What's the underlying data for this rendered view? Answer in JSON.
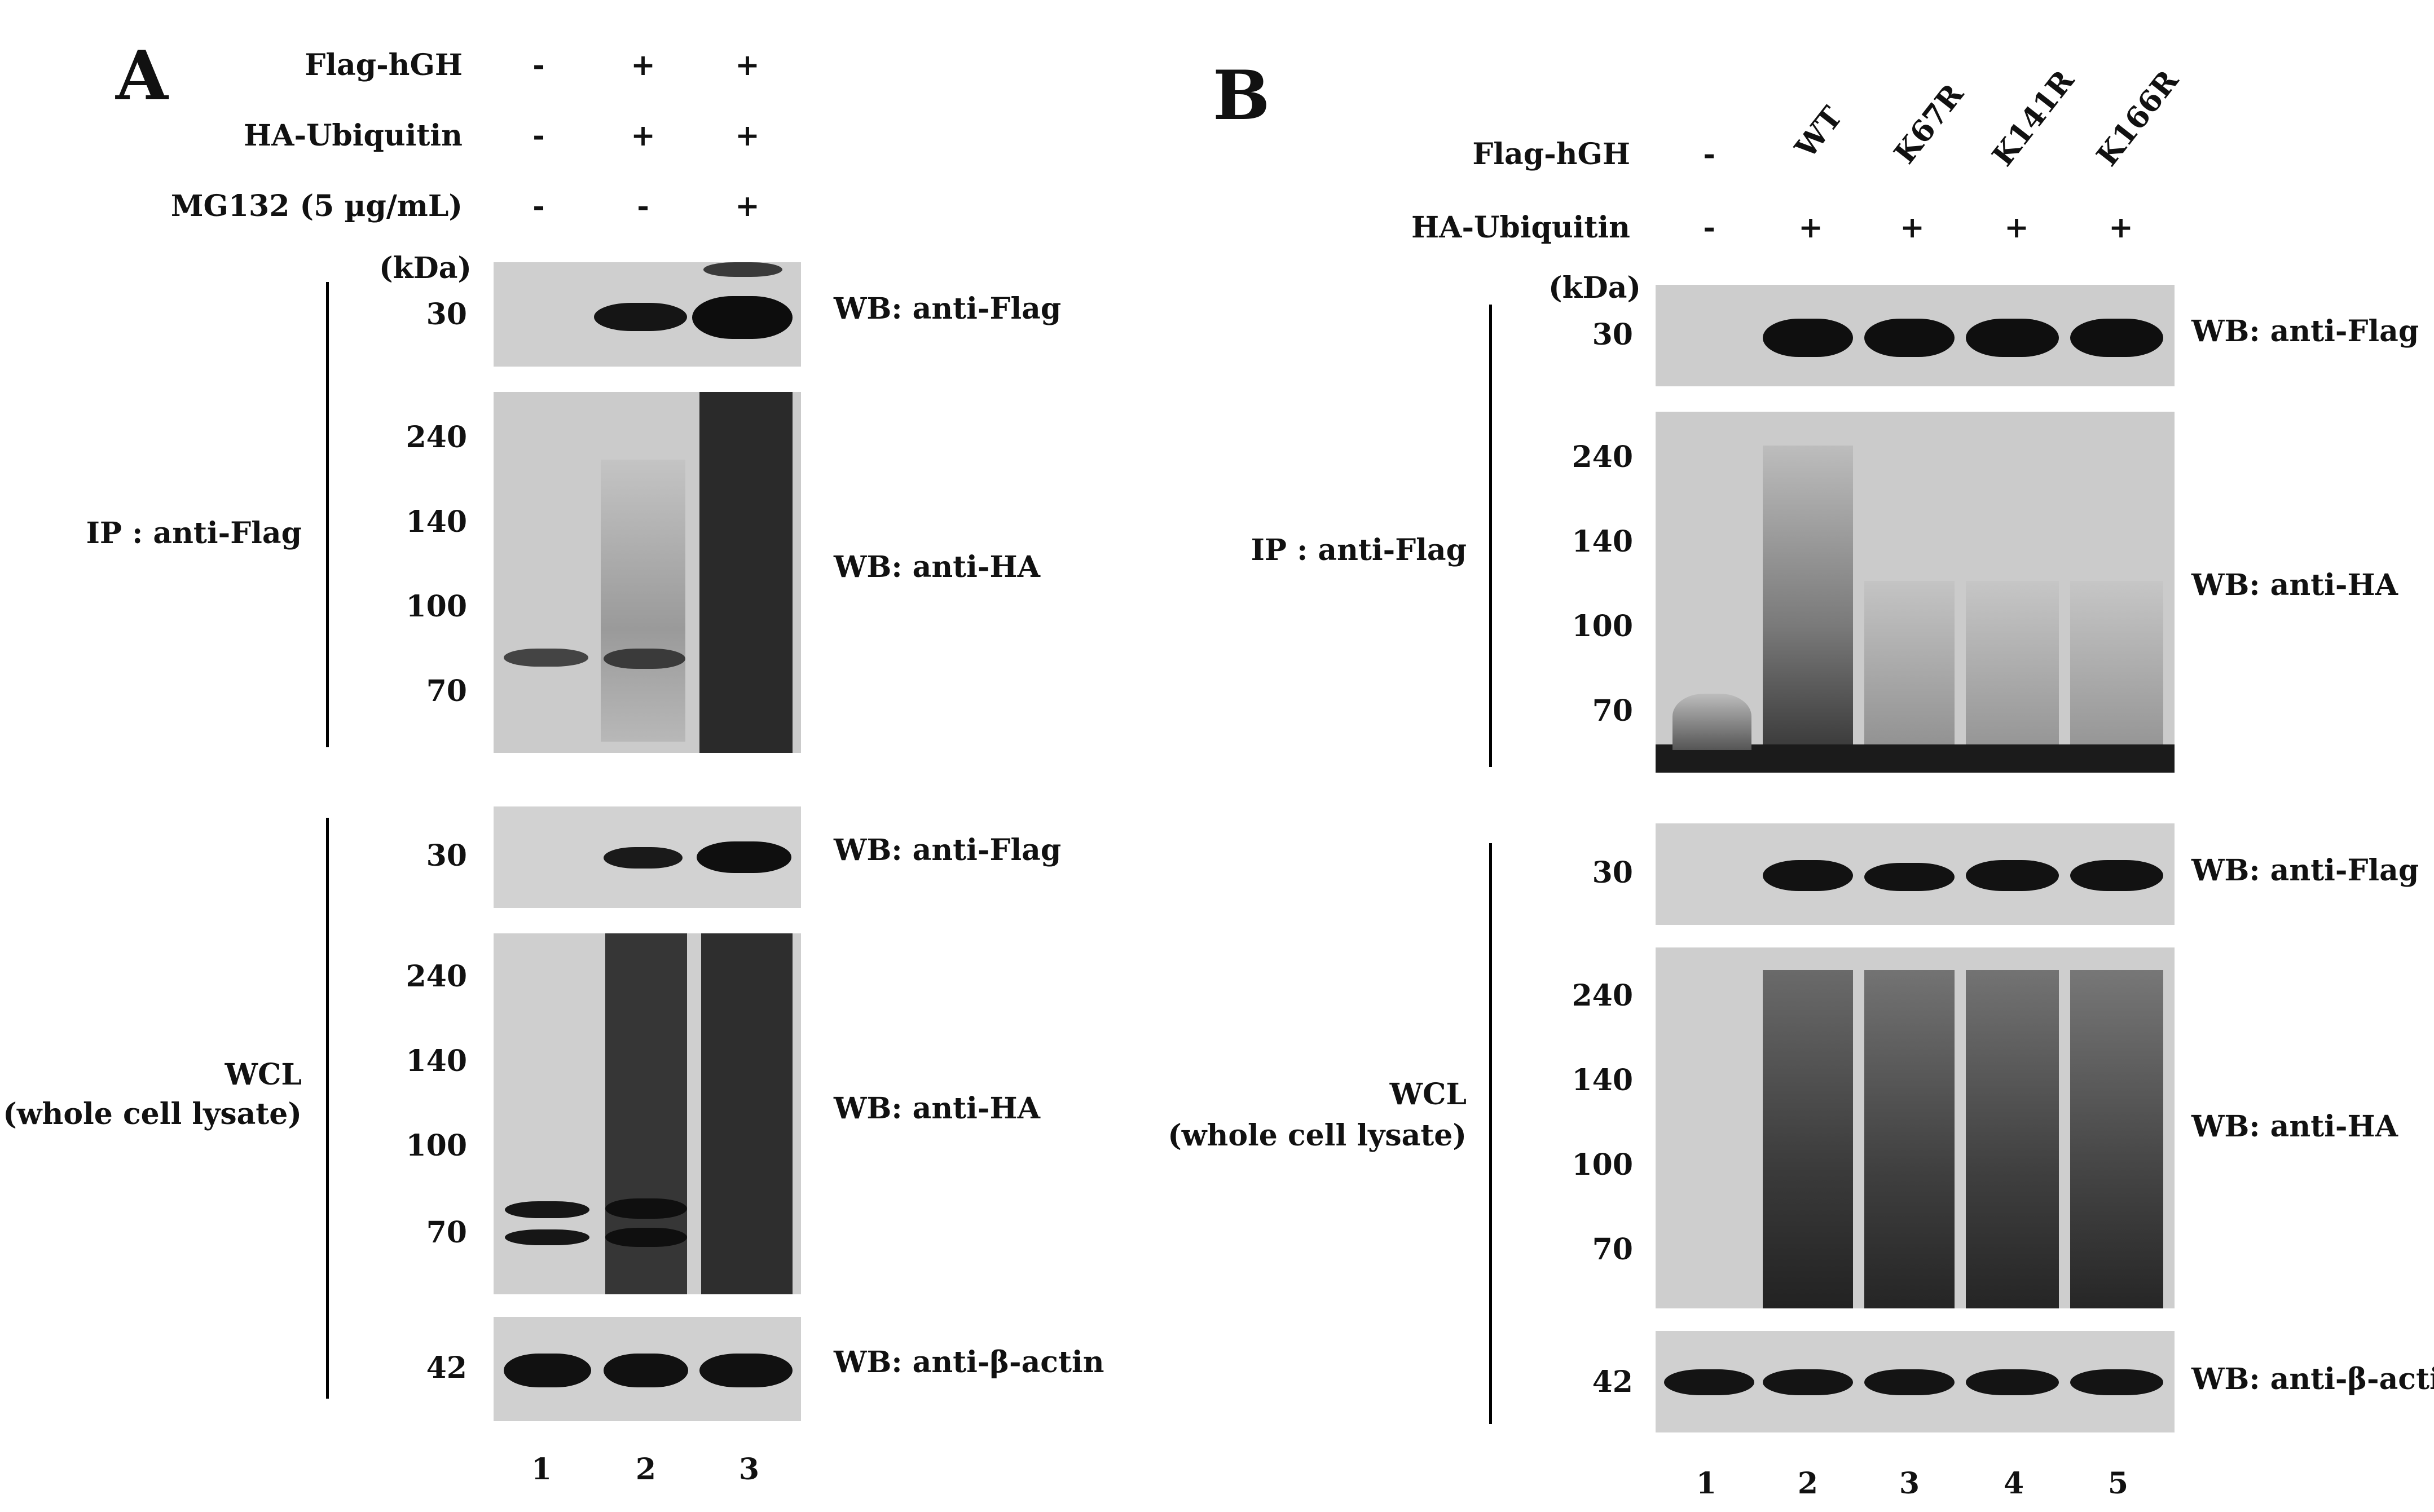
{
  "panelA": {
    "letter": "A",
    "rows": [
      {
        "label": "Flag-hGH",
        "marks": [
          "-",
          "+",
          "+"
        ]
      },
      {
        "label": "HA-Ubiquitin",
        "marks": [
          "-",
          "+",
          "+"
        ]
      },
      {
        "label": "MG132 (5 µg/mL)",
        "marks": [
          "-",
          "-",
          "+"
        ]
      }
    ],
    "kda": "(kDa)",
    "ip_label": "IP : anti-Flag",
    "wcl_label_1": "WCL",
    "wcl_label_2": "(whole cell lysate)",
    "blots": {
      "ip_flag": {
        "markers": [
          "30"
        ],
        "label": "WB: anti-Flag"
      },
      "ip_ha": {
        "markers": [
          "240",
          "140",
          "100",
          "70"
        ],
        "label": "WB: anti-HA"
      },
      "wcl_flag": {
        "markers": [
          "30"
        ],
        "label": "WB: anti-Flag"
      },
      "wcl_ha": {
        "markers": [
          "240",
          "140",
          "100",
          "70"
        ],
        "label": "WB: anti-HA"
      },
      "wcl_actin": {
        "markers": [
          "42"
        ],
        "label": "WB: anti-β-actin"
      }
    },
    "lanes": [
      "1",
      "2",
      "3"
    ]
  },
  "panelB": {
    "letter": "B",
    "rows": [
      {
        "label": "Flag-hGH",
        "marks": [
          "-",
          "WT",
          "K67R",
          "K141R",
          "K166R"
        ]
      },
      {
        "label": "HA-Ubiquitin",
        "marks": [
          "-",
          "+",
          "+",
          "+",
          "+"
        ]
      }
    ],
    "kda": "(kDa)",
    "ip_label": "IP : anti-Flag",
    "wcl_label_1": "WCL",
    "wcl_label_2": "(whole cell lysate)",
    "blots": {
      "ip_flag": {
        "markers": [
          "30"
        ],
        "label": "WB: anti-Flag"
      },
      "ip_ha": {
        "markers": [
          "240",
          "140",
          "100",
          "70"
        ],
        "label": "WB: anti-HA"
      },
      "wcl_flag": {
        "markers": [
          "30"
        ],
        "label": "WB: anti-Flag"
      },
      "wcl_ha": {
        "markers": [
          "240",
          "140",
          "100",
          "70"
        ],
        "label": "WB: anti-HA"
      },
      "wcl_actin": {
        "markers": [
          "42"
        ],
        "label": "WB: anti-β-actin"
      }
    },
    "lanes": [
      "1",
      "2",
      "3",
      "4",
      "5"
    ]
  },
  "colors": {
    "blot_bg": "#c9c9c9",
    "band": "#141414",
    "smear": "#3a3a3a"
  }
}
